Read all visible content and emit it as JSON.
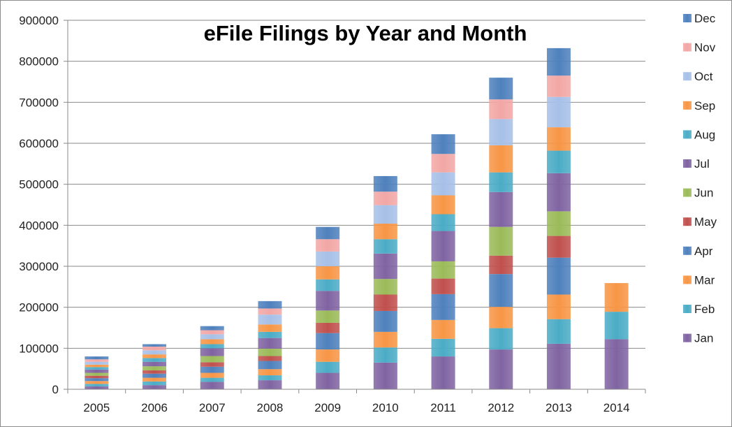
{
  "chart_data": {
    "type": "bar",
    "stacked": true,
    "title": "eFile Filings by Year and Month",
    "xlabel": "",
    "ylabel": "",
    "ylim": [
      0,
      900000
    ],
    "yticks": [
      0,
      100000,
      200000,
      300000,
      400000,
      500000,
      600000,
      700000,
      800000,
      900000
    ],
    "grid": true,
    "legend_position": "right",
    "categories": [
      "2005",
      "2006",
      "2007",
      "2008",
      "2009",
      "2010",
      "2011",
      "2012",
      "2013",
      "2014"
    ],
    "series": [
      {
        "name": "Jan",
        "color": "#8064a2",
        "values": [
          7000,
          10000,
          18000,
          22000,
          40000,
          65000,
          80000,
          97000,
          111000,
          122000
        ]
      },
      {
        "name": "Feb",
        "color": "#4bacc6",
        "values": [
          6000,
          9000,
          10000,
          12000,
          27000,
          37000,
          43000,
          52000,
          60000,
          67000
        ]
      },
      {
        "name": "Mar",
        "color": "#f79646",
        "values": [
          7000,
          9000,
          12000,
          15000,
          30000,
          38000,
          46000,
          52000,
          60000,
          70000
        ]
      },
      {
        "name": "Apr",
        "color": "#4f81bd",
        "values": [
          7000,
          10000,
          15000,
          20000,
          40000,
          51000,
          63000,
          80000,
          90000,
          0
        ]
      },
      {
        "name": "May",
        "color": "#c0504d",
        "values": [
          6000,
          8000,
          11000,
          12000,
          25000,
          40000,
          38000,
          45000,
          53000,
          0
        ]
      },
      {
        "name": "Jun",
        "color": "#9bbb59",
        "values": [
          7000,
          10000,
          15000,
          18000,
          30000,
          38000,
          42000,
          70000,
          60000,
          0
        ]
      },
      {
        "name": "Jul",
        "color": "#8064a2",
        "values": [
          8000,
          11000,
          19000,
          26000,
          48000,
          62000,
          74000,
          85000,
          93000,
          0
        ]
      },
      {
        "name": "Aug",
        "color": "#4bacc6",
        "values": [
          6000,
          9000,
          10000,
          15000,
          28000,
          35000,
          41000,
          48000,
          55000,
          0
        ]
      },
      {
        "name": "Sep",
        "color": "#f79646",
        "values": [
          6000,
          9000,
          12000,
          18000,
          32000,
          38000,
          46000,
          66000,
          57000,
          0
        ]
      },
      {
        "name": "Oct",
        "color": "#a7c0e8",
        "values": [
          7000,
          10000,
          12000,
          24000,
          36000,
          45000,
          56000,
          64000,
          74000,
          0
        ]
      },
      {
        "name": "Nov",
        "color": "#f2a7a5",
        "values": [
          6000,
          9000,
          10000,
          15000,
          30000,
          33000,
          45000,
          48000,
          52000,
          0
        ]
      },
      {
        "name": "Dec",
        "color": "#4f81bd",
        "values": [
          7000,
          6000,
          10000,
          18000,
          30000,
          38000,
          48000,
          53000,
          67000,
          0
        ]
      }
    ]
  }
}
